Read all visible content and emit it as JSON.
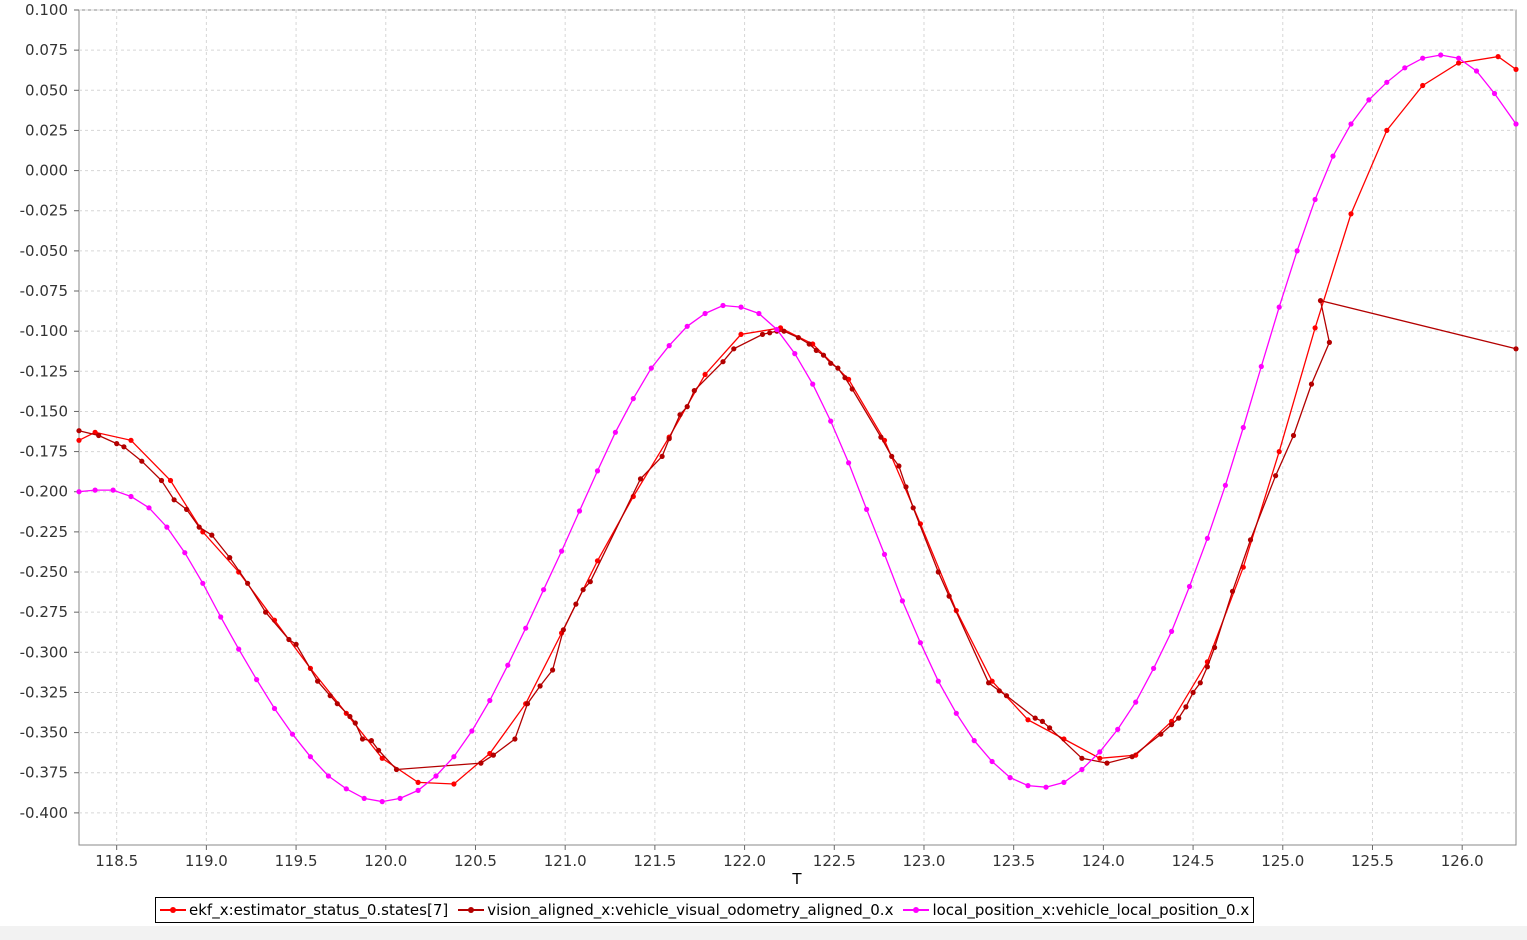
{
  "chart_data": {
    "type": "line",
    "title": "",
    "xlabel": "T",
    "ylabel": "",
    "xlim": [
      118.29,
      126.3
    ],
    "ylim": [
      -0.42,
      0.1
    ],
    "grid": true,
    "legend_position": "bottom",
    "x_ticks": [
      "118.5",
      "119.0",
      "119.5",
      "120.0",
      "120.5",
      "121.0",
      "121.5",
      "122.0",
      "122.5",
      "123.0",
      "123.5",
      "124.0",
      "124.5",
      "125.0",
      "125.5",
      "126.0"
    ],
    "y_ticks": [
      "0.100",
      "0.075",
      "0.050",
      "0.025",
      "0.000",
      "-0.025",
      "-0.050",
      "-0.075",
      "-0.100",
      "-0.125",
      "-0.150",
      "-0.175",
      "-0.200",
      "-0.225",
      "-0.250",
      "-0.275",
      "-0.300",
      "-0.325",
      "-0.350",
      "-0.375",
      "-0.400"
    ],
    "series": [
      {
        "name": "ekf_x:estimator_status_0.states[7]",
        "color": "#ff0000",
        "points": [
          [
            118.29,
            -0.168
          ],
          [
            118.38,
            -0.163
          ],
          [
            118.58,
            -0.168
          ],
          [
            118.8,
            -0.193
          ],
          [
            118.98,
            -0.225
          ],
          [
            119.18,
            -0.25
          ],
          [
            119.38,
            -0.28
          ],
          [
            119.58,
            -0.31
          ],
          [
            119.78,
            -0.338
          ],
          [
            119.98,
            -0.366
          ],
          [
            120.18,
            -0.381
          ],
          [
            120.38,
            -0.382
          ],
          [
            120.58,
            -0.363
          ],
          [
            120.78,
            -0.332
          ],
          [
            120.98,
            -0.288
          ],
          [
            121.18,
            -0.243
          ],
          [
            121.38,
            -0.203
          ],
          [
            121.58,
            -0.166
          ],
          [
            121.78,
            -0.127
          ],
          [
            121.98,
            -0.102
          ],
          [
            122.2,
            -0.098
          ],
          [
            122.38,
            -0.108
          ],
          [
            122.58,
            -0.13
          ],
          [
            122.78,
            -0.168
          ],
          [
            122.98,
            -0.22
          ],
          [
            123.18,
            -0.274
          ],
          [
            123.38,
            -0.318
          ],
          [
            123.58,
            -0.342
          ],
          [
            123.78,
            -0.354
          ],
          [
            123.98,
            -0.366
          ],
          [
            124.18,
            -0.364
          ],
          [
            124.38,
            -0.343
          ],
          [
            124.58,
            -0.306
          ],
          [
            124.78,
            -0.247
          ],
          [
            124.98,
            -0.175
          ],
          [
            125.18,
            -0.098
          ],
          [
            125.38,
            -0.027
          ],
          [
            125.58,
            0.025
          ],
          [
            125.78,
            0.053
          ],
          [
            125.98,
            0.067
          ],
          [
            126.2,
            0.071
          ],
          [
            126.3,
            0.063
          ]
        ]
      },
      {
        "name": "vision_aligned_x:vehicle_visual_odometry_aligned_0.x",
        "color": "#b30000",
        "points": [
          [
            118.29,
            -0.162
          ],
          [
            118.4,
            -0.165
          ],
          [
            118.5,
            -0.17
          ],
          [
            118.54,
            -0.172
          ],
          [
            118.64,
            -0.181
          ],
          [
            118.75,
            -0.193
          ],
          [
            118.82,
            -0.205
          ],
          [
            118.89,
            -0.211
          ],
          [
            118.96,
            -0.222
          ],
          [
            119.03,
            -0.227
          ],
          [
            119.13,
            -0.241
          ],
          [
            119.23,
            -0.257
          ],
          [
            119.33,
            -0.275
          ],
          [
            119.46,
            -0.292
          ],
          [
            119.5,
            -0.295
          ],
          [
            119.62,
            -0.318
          ],
          [
            119.69,
            -0.327
          ],
          [
            119.73,
            -0.332
          ],
          [
            119.8,
            -0.34
          ],
          [
            119.83,
            -0.344
          ],
          [
            119.87,
            -0.354
          ],
          [
            119.92,
            -0.355
          ],
          [
            119.96,
            -0.361
          ],
          [
            120.06,
            -0.373
          ],
          [
            120.53,
            -0.369
          ],
          [
            120.6,
            -0.364
          ],
          [
            120.72,
            -0.354
          ],
          [
            120.79,
            -0.332
          ],
          [
            120.86,
            -0.321
          ],
          [
            120.93,
            -0.311
          ],
          [
            120.99,
            -0.286
          ],
          [
            121.06,
            -0.27
          ],
          [
            121.1,
            -0.261
          ],
          [
            121.14,
            -0.256
          ],
          [
            121.42,
            -0.192
          ],
          [
            121.54,
            -0.178
          ],
          [
            121.58,
            -0.167
          ],
          [
            121.64,
            -0.152
          ],
          [
            121.68,
            -0.147
          ],
          [
            121.72,
            -0.137
          ],
          [
            121.88,
            -0.119
          ],
          [
            121.94,
            -0.111
          ],
          [
            122.1,
            -0.102
          ],
          [
            122.14,
            -0.101
          ],
          [
            122.18,
            -0.1
          ],
          [
            122.22,
            -0.1
          ],
          [
            122.3,
            -0.104
          ],
          [
            122.36,
            -0.108
          ],
          [
            122.4,
            -0.112
          ],
          [
            122.44,
            -0.115
          ],
          [
            122.48,
            -0.12
          ],
          [
            122.52,
            -0.123
          ],
          [
            122.56,
            -0.129
          ],
          [
            122.6,
            -0.136
          ],
          [
            122.76,
            -0.166
          ],
          [
            122.82,
            -0.178
          ],
          [
            122.86,
            -0.184
          ],
          [
            122.9,
            -0.197
          ],
          [
            122.94,
            -0.21
          ],
          [
            123.08,
            -0.25
          ],
          [
            123.14,
            -0.265
          ],
          [
            123.36,
            -0.319
          ],
          [
            123.42,
            -0.324
          ],
          [
            123.46,
            -0.327
          ],
          [
            123.62,
            -0.341
          ],
          [
            123.66,
            -0.343
          ],
          [
            123.7,
            -0.347
          ],
          [
            123.88,
            -0.366
          ],
          [
            124.02,
            -0.369
          ],
          [
            124.16,
            -0.365
          ],
          [
            124.32,
            -0.351
          ],
          [
            124.38,
            -0.345
          ],
          [
            124.42,
            -0.341
          ],
          [
            124.46,
            -0.334
          ],
          [
            124.5,
            -0.325
          ],
          [
            124.54,
            -0.319
          ],
          [
            124.58,
            -0.309
          ],
          [
            124.62,
            -0.297
          ],
          [
            124.72,
            -0.262
          ],
          [
            124.82,
            -0.23
          ],
          [
            124.96,
            -0.19
          ],
          [
            125.06,
            -0.165
          ],
          [
            125.16,
            -0.133
          ],
          [
            125.26,
            -0.107
          ],
          [
            125.21,
            -0.081
          ],
          [
            126.3,
            -0.111
          ]
        ]
      },
      {
        "name": "local_position_x:vehicle_local_position_0.x",
        "color": "#ff00ff",
        "points": [
          [
            118.29,
            -0.2
          ],
          [
            118.38,
            -0.199
          ],
          [
            118.48,
            -0.199
          ],
          [
            118.58,
            -0.203
          ],
          [
            118.68,
            -0.21
          ],
          [
            118.78,
            -0.222
          ],
          [
            118.88,
            -0.238
          ],
          [
            118.98,
            -0.257
          ],
          [
            119.08,
            -0.278
          ],
          [
            119.18,
            -0.298
          ],
          [
            119.28,
            -0.317
          ],
          [
            119.38,
            -0.335
          ],
          [
            119.48,
            -0.351
          ],
          [
            119.58,
            -0.365
          ],
          [
            119.68,
            -0.377
          ],
          [
            119.78,
            -0.385
          ],
          [
            119.88,
            -0.391
          ],
          [
            119.98,
            -0.393
          ],
          [
            120.08,
            -0.391
          ],
          [
            120.18,
            -0.386
          ],
          [
            120.28,
            -0.377
          ],
          [
            120.38,
            -0.365
          ],
          [
            120.48,
            -0.349
          ],
          [
            120.58,
            -0.33
          ],
          [
            120.68,
            -0.308
          ],
          [
            120.78,
            -0.285
          ],
          [
            120.88,
            -0.261
          ],
          [
            120.98,
            -0.237
          ],
          [
            121.08,
            -0.212
          ],
          [
            121.18,
            -0.187
          ],
          [
            121.28,
            -0.163
          ],
          [
            121.38,
            -0.142
          ],
          [
            121.48,
            -0.123
          ],
          [
            121.58,
            -0.109
          ],
          [
            121.68,
            -0.097
          ],
          [
            121.78,
            -0.089
          ],
          [
            121.88,
            -0.084
          ],
          [
            121.98,
            -0.085
          ],
          [
            122.08,
            -0.089
          ],
          [
            122.18,
            -0.099
          ],
          [
            122.28,
            -0.114
          ],
          [
            122.38,
            -0.133
          ],
          [
            122.48,
            -0.156
          ],
          [
            122.58,
            -0.182
          ],
          [
            122.68,
            -0.211
          ],
          [
            122.78,
            -0.239
          ],
          [
            122.88,
            -0.268
          ],
          [
            122.98,
            -0.294
          ],
          [
            123.08,
            -0.318
          ],
          [
            123.18,
            -0.338
          ],
          [
            123.28,
            -0.355
          ],
          [
            123.38,
            -0.368
          ],
          [
            123.48,
            -0.378
          ],
          [
            123.58,
            -0.383
          ],
          [
            123.68,
            -0.384
          ],
          [
            123.78,
            -0.381
          ],
          [
            123.88,
            -0.373
          ],
          [
            123.98,
            -0.362
          ],
          [
            124.08,
            -0.348
          ],
          [
            124.18,
            -0.331
          ],
          [
            124.28,
            -0.31
          ],
          [
            124.38,
            -0.287
          ],
          [
            124.48,
            -0.259
          ],
          [
            124.58,
            -0.229
          ],
          [
            124.68,
            -0.196
          ],
          [
            124.78,
            -0.16
          ],
          [
            124.88,
            -0.122
          ],
          [
            124.98,
            -0.085
          ],
          [
            125.08,
            -0.05
          ],
          [
            125.18,
            -0.018
          ],
          [
            125.28,
            0.009
          ],
          [
            125.38,
            0.029
          ],
          [
            125.48,
            0.044
          ],
          [
            125.58,
            0.055
          ],
          [
            125.68,
            0.064
          ],
          [
            125.78,
            0.07
          ],
          [
            125.88,
            0.072
          ],
          [
            125.98,
            0.07
          ],
          [
            126.08,
            0.062
          ],
          [
            126.18,
            0.048
          ],
          [
            126.3,
            0.029
          ]
        ]
      }
    ]
  }
}
